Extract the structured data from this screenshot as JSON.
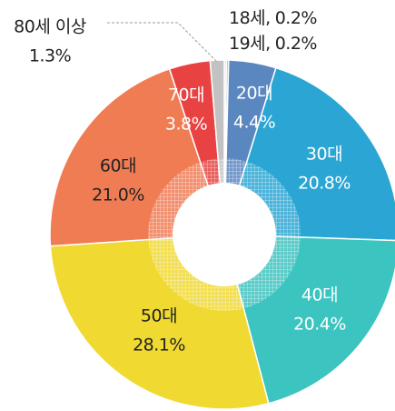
{
  "chart_data": {
    "type": "pie",
    "categories": [
      "18세,",
      "19세,",
      "20대",
      "30대",
      "40대",
      "50대",
      "60대",
      "70대",
      "80세 이상"
    ],
    "values": [
      0.2,
      0.2,
      4.4,
      20.8,
      20.4,
      28.1,
      21.0,
      3.8,
      1.3
    ],
    "value_labels": [
      "0.2%",
      "0.2%",
      "4.4%",
      "20.8%",
      "20.4%",
      "28.1%",
      "21.0%",
      "3.8%",
      "1.3%"
    ],
    "colors": [
      "#dcdcdc",
      "#b4b4b4",
      "#5b87c0",
      "#2ba6d4",
      "#3cc4c0",
      "#f0d930",
      "#f07c54",
      "#e84242",
      "#c2c2c2"
    ]
  }
}
